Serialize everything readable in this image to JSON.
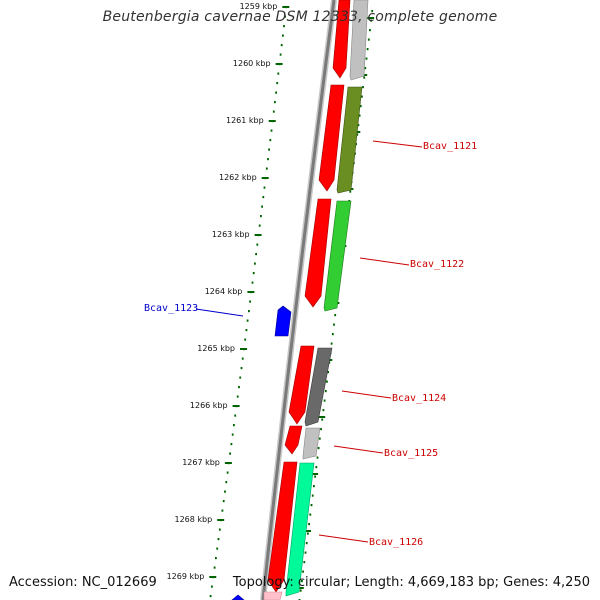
{
  "header": {
    "title": "Beutenbergia cavernae DSM 12333, complete genome"
  },
  "footer": {
    "accession": "Accession: NC_012669",
    "topology": "Topology: circular; Length: 4,669,183 bp; Genes: 4,250"
  },
  "scale": {
    "tick_labels": [
      "1259 kbp",
      "1260 kbp",
      "1261 kbp",
      "1262 kbp",
      "1263 kbp",
      "1264 kbp",
      "1265 kbp",
      "1266 kbp",
      "1267 kbp",
      "1268 kbp",
      "1269 kbp"
    ]
  },
  "genes": [
    {
      "label": "Bcav_1121",
      "strand": "plus",
      "color": "#6b8e23"
    },
    {
      "label": "Bcav_1122",
      "strand": "plus",
      "color": "#32cd32"
    },
    {
      "label": "Bcav_1123",
      "strand": "minus",
      "color": "#0000ff"
    },
    {
      "label": "Bcav_1124",
      "strand": "plus",
      "color": "#696969"
    },
    {
      "label": "Bcav_1125",
      "strand": "plus",
      "color": "#c0c0c0"
    },
    {
      "label": "Bcav_1126",
      "strand": "plus",
      "color": "#00fa9a"
    }
  ],
  "colors": {
    "backbone": "#808080",
    "coding_feature": "#ff0000",
    "plus_label": "#cc0000",
    "minus_label": "#0000cc",
    "tick": "#006400"
  }
}
